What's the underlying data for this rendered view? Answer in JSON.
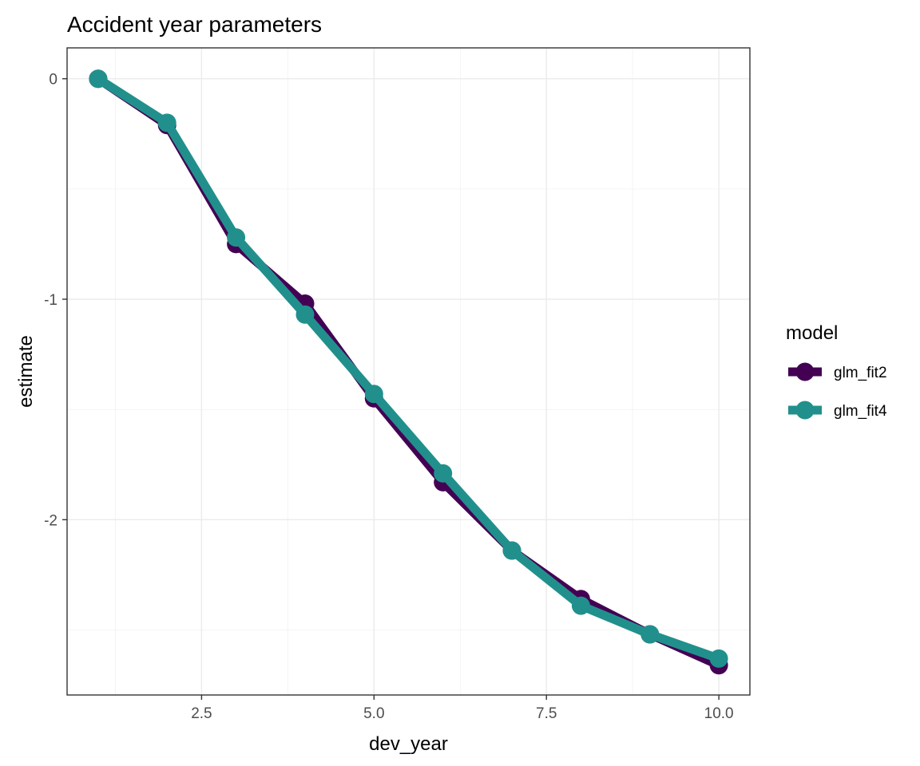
{
  "chart_data": {
    "type": "line",
    "title": "Accident year parameters",
    "xlabel": "dev_year",
    "ylabel": "estimate",
    "xlim": [
      0.55,
      10.45
    ],
    "ylim": [
      -2.795,
      0.14
    ],
    "x_ticks": [
      2.5,
      5.0,
      7.5,
      10.0
    ],
    "x_tick_labels": [
      "2.5",
      "5.0",
      "7.5",
      "10.0"
    ],
    "x_minor_ticks": [
      1.25,
      3.75,
      6.25,
      8.75
    ],
    "y_ticks": [
      0,
      -1,
      -2
    ],
    "y_tick_labels": [
      "0",
      "-1",
      "-2"
    ],
    "y_minor_ticks": [
      -0.5,
      -1.5,
      -2.5
    ],
    "grid": true,
    "legend_position": "right",
    "legend_title": "model",
    "x": [
      1,
      2,
      3,
      4,
      5,
      6,
      7,
      8,
      9,
      10
    ],
    "series": [
      {
        "name": "glm_fit2",
        "color": "#440154",
        "values": [
          0,
          -0.21,
          -0.75,
          -1.02,
          -1.45,
          -1.83,
          -2.14,
          -2.36,
          -2.52,
          -2.66
        ]
      },
      {
        "name": "glm_fit4",
        "color": "#21908c",
        "values": [
          0,
          -0.2,
          -0.72,
          -1.07,
          -1.43,
          -1.79,
          -2.14,
          -2.39,
          -2.52,
          -2.63
        ]
      }
    ]
  }
}
